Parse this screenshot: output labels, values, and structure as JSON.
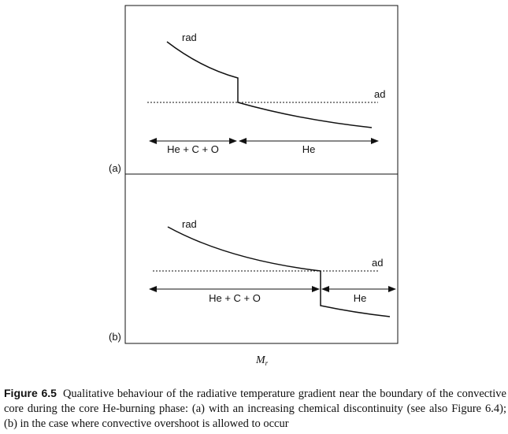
{
  "panels": {
    "a": {
      "tag": "(a)",
      "rad_label": "rad",
      "ad_label": "ad",
      "region_left": "He + C + O",
      "region_right": "He"
    },
    "b": {
      "tag": "(b)",
      "rad_label": "rad",
      "ad_label": "ad",
      "region_left": "He + C + O",
      "region_right": "He"
    }
  },
  "x_axis": {
    "symbol": "M",
    "subscript": "r"
  },
  "caption": {
    "number": "Figure 6.5",
    "text": "Qualitative behaviour of the radiative temperature gradient near the boundary of the convective core during the core He-burning phase: (a) with an increasing chemical discontinuity (see also Figure 6.4); (b) in the case where convective overshoot is allowed to occur"
  },
  "colors": {
    "line": "#111111",
    "background": "#ffffff"
  }
}
